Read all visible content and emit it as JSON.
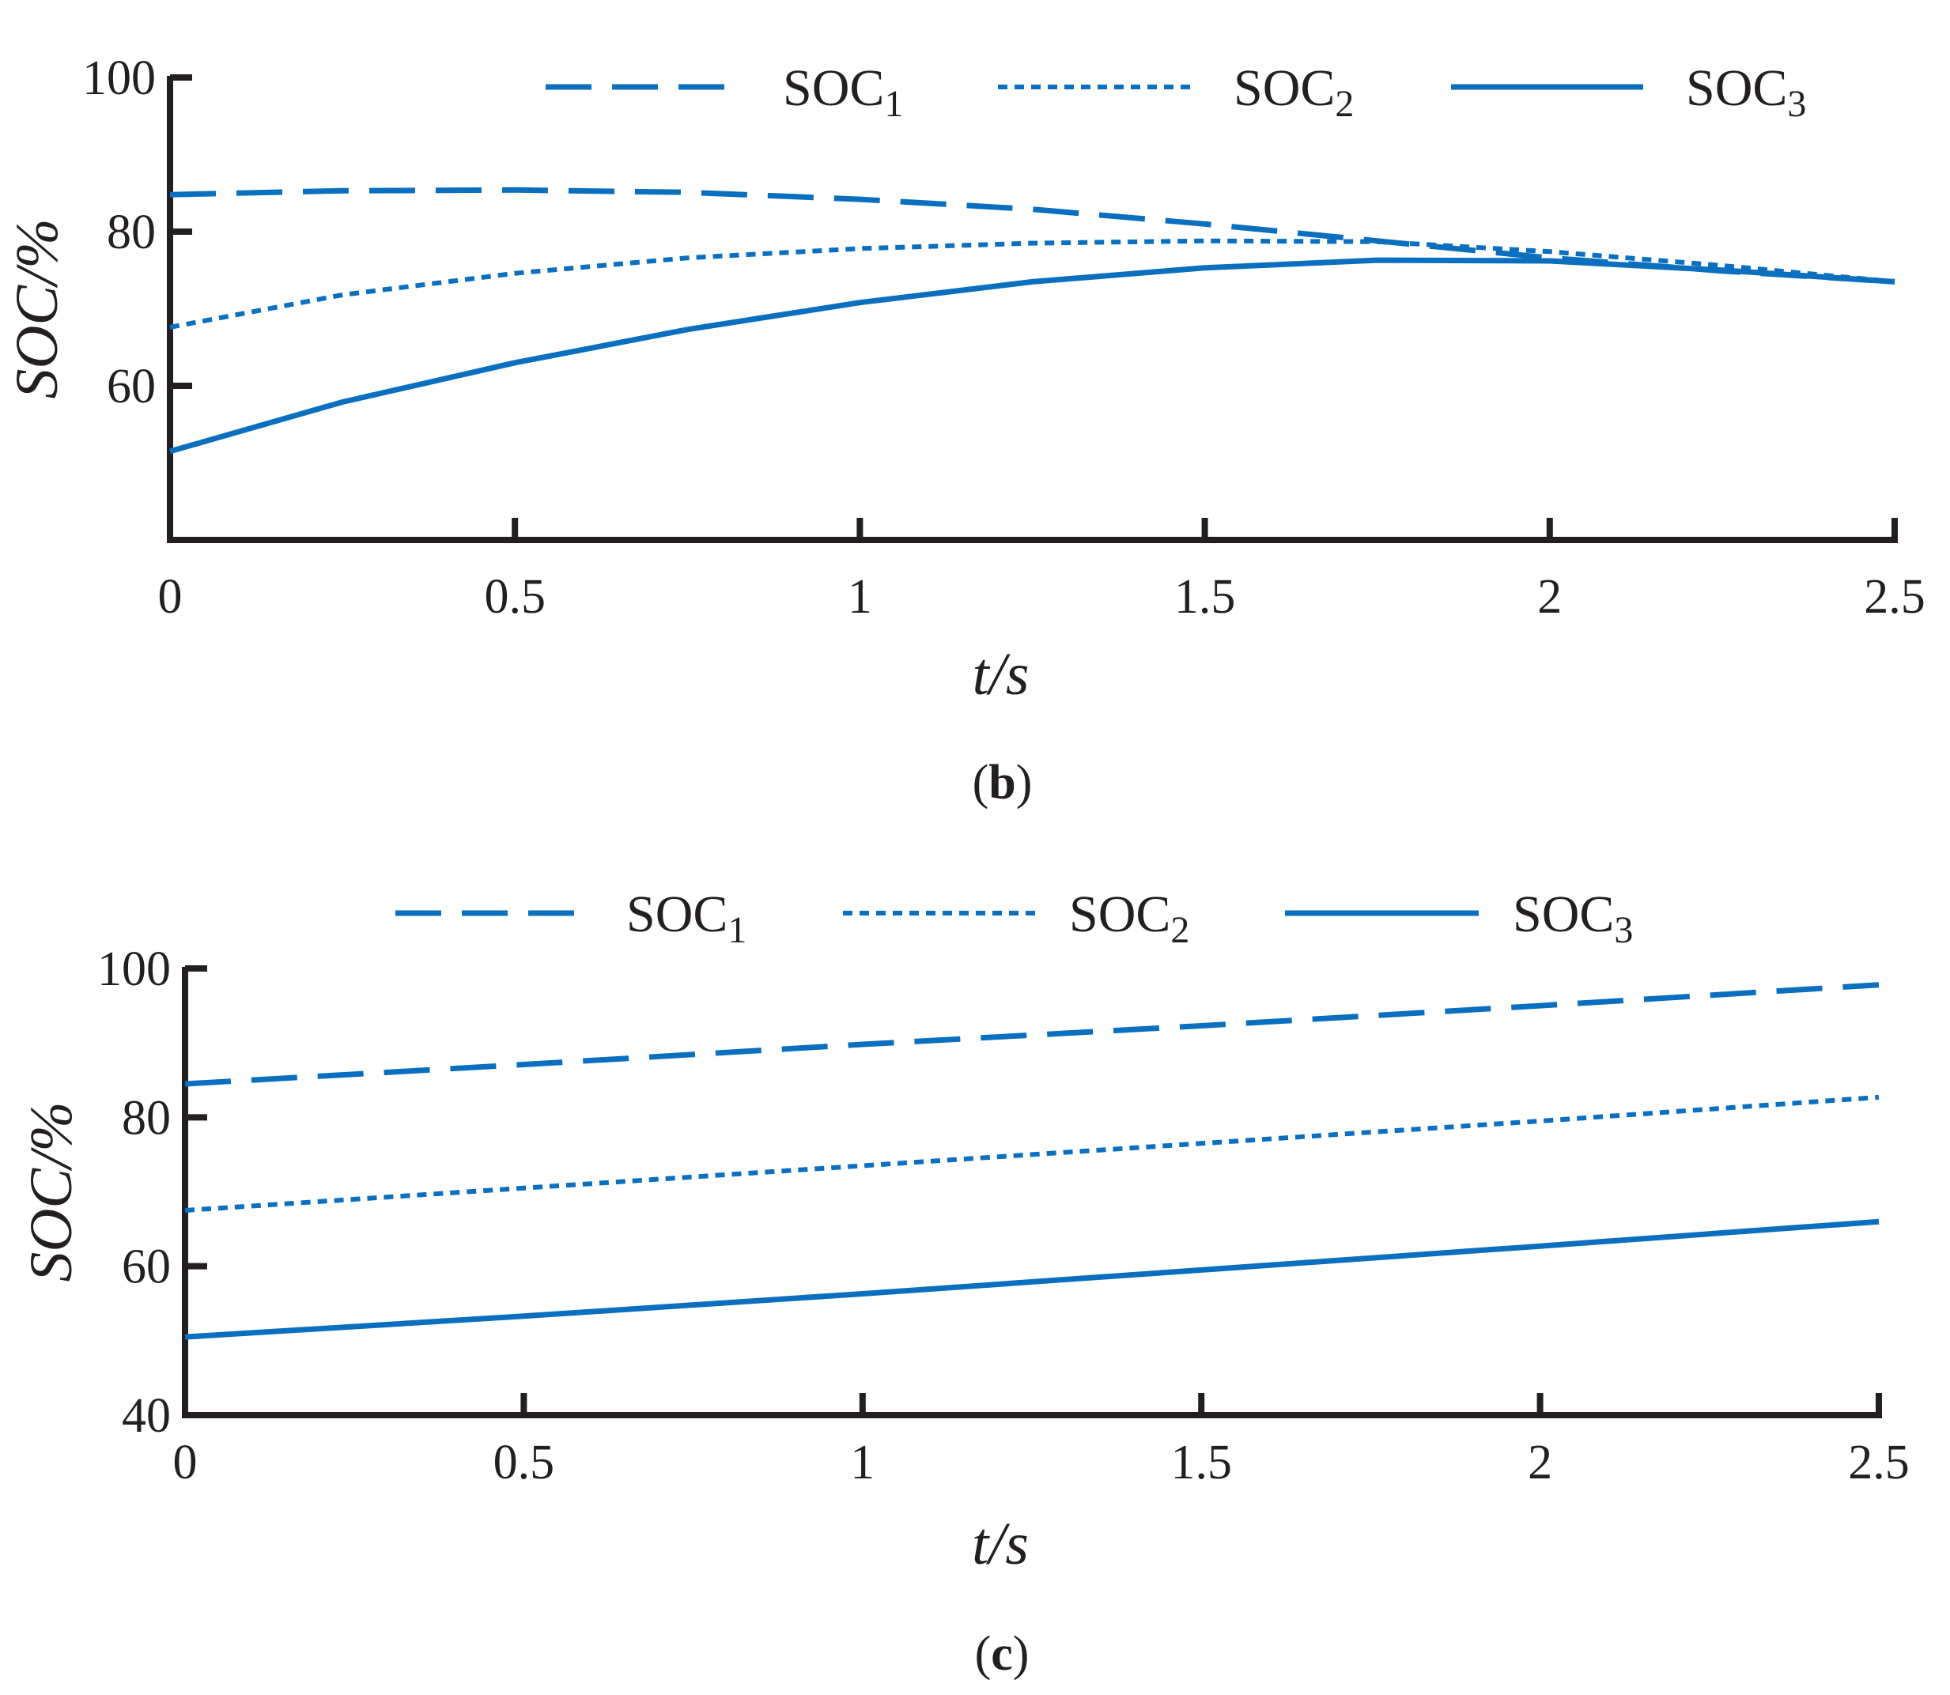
{
  "color": "#0a6fbf",
  "chart_data": [
    {
      "type": "line",
      "panel_label": "b",
      "xlabel": "t/s",
      "ylabel": "SOC/%",
      "xlim": [
        0,
        2.5
      ],
      "ylim": [
        40,
        100
      ],
      "xticks": [
        "0",
        "0.5",
        "1",
        "1.5",
        "2",
        "2.5"
      ],
      "yticks": [
        "60",
        "80",
        "100"
      ],
      "legend": {
        "position": "top-right",
        "entries": [
          {
            "base": "SOC",
            "sub": "1"
          },
          {
            "base": "SOC",
            "sub": "2"
          },
          {
            "base": "SOC",
            "sub": "3"
          }
        ]
      },
      "x": [
        0,
        0.25,
        0.5,
        0.75,
        1,
        1.25,
        1.5,
        1.75,
        2,
        2.25,
        2.5
      ],
      "series": [
        {
          "name": "SOC1",
          "style": "dashed",
          "values": [
            84.8,
            85.3,
            85.4,
            85.1,
            84.2,
            82.9,
            81.0,
            78.8,
            76.6,
            74.9,
            73.5
          ]
        },
        {
          "name": "SOC2",
          "style": "dotted",
          "values": [
            67.6,
            71.8,
            74.6,
            76.6,
            77.8,
            78.5,
            78.8,
            78.7,
            77.4,
            75.6,
            73.5
          ]
        },
        {
          "name": "SOC3",
          "style": "solid",
          "values": [
            51.5,
            57.9,
            63.0,
            67.3,
            70.8,
            73.5,
            75.3,
            76.3,
            76.2,
            75.0,
            73.5
          ]
        }
      ]
    },
    {
      "type": "line",
      "panel_label": "c",
      "xlabel": "t/s",
      "ylabel": "SOC/%",
      "xlim": [
        0,
        2.5
      ],
      "ylim": [
        40,
        100
      ],
      "xticks": [
        "0",
        "0.5",
        "1",
        "1.5",
        "2",
        "2.5"
      ],
      "yticks": [
        "40",
        "60",
        "80",
        "100"
      ],
      "legend": {
        "position": "top-center",
        "entries": [
          {
            "base": "SOC",
            "sub": "1"
          },
          {
            "base": "SOC",
            "sub": "2"
          },
          {
            "base": "SOC",
            "sub": "3"
          }
        ]
      },
      "x": [
        0,
        0.5,
        1,
        1.5,
        2,
        2.5
      ],
      "series": [
        {
          "name": "SOC1",
          "style": "dashed",
          "values": [
            84.5,
            87.1,
            89.8,
            92.3,
            95.0,
            97.8
          ]
        },
        {
          "name": "SOC2",
          "style": "dotted",
          "values": [
            67.5,
            70.5,
            73.5,
            76.5,
            79.5,
            82.7
          ]
        },
        {
          "name": "SOC3",
          "style": "solid",
          "values": [
            50.5,
            53.3,
            56.3,
            59.5,
            62.7,
            66.0
          ]
        }
      ]
    }
  ]
}
